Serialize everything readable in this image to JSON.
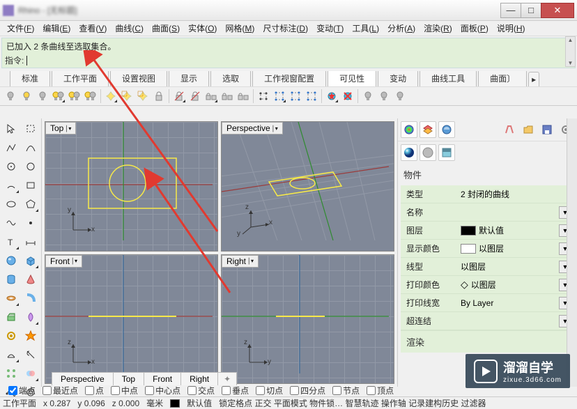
{
  "window": {
    "title": "Rhino - [无标题]"
  },
  "menus": [
    {
      "label": "文件",
      "key": "F"
    },
    {
      "label": "编辑",
      "key": "E"
    },
    {
      "label": "查看",
      "key": "V"
    },
    {
      "label": "曲线",
      "key": "C"
    },
    {
      "label": "曲面",
      "key": "S"
    },
    {
      "label": "实体",
      "key": "O"
    },
    {
      "label": "网格",
      "key": "M"
    },
    {
      "label": "尺寸标注",
      "key": "D"
    },
    {
      "label": "变动",
      "key": "T"
    },
    {
      "label": "工具",
      "key": "L"
    },
    {
      "label": "分析",
      "key": "A"
    },
    {
      "label": "渲染",
      "key": "R"
    },
    {
      "label": "面板",
      "key": "P"
    },
    {
      "label": "说明",
      "key": "H"
    }
  ],
  "command": {
    "history_line": "已加入 2 条曲线至选取集合。",
    "prompt_label": "指令:",
    "input_value": ""
  },
  "tabs": [
    {
      "label": "标准"
    },
    {
      "label": "工作平面"
    },
    {
      "label": "设置视图"
    },
    {
      "label": "显示"
    },
    {
      "label": "选取"
    },
    {
      "label": "工作视窗配置"
    },
    {
      "label": "可见性",
      "active": true
    },
    {
      "label": "变动"
    },
    {
      "label": "曲线工具"
    },
    {
      "label": "曲面〕"
    }
  ],
  "toolbar_icons": [
    {
      "name": "bulb-off-1",
      "type": "bulb_off"
    },
    {
      "name": "bulb-on-1",
      "type": "bulb_on"
    },
    {
      "name": "bulb-off-2",
      "type": "bulb_off"
    },
    {
      "name": "bulb-pair-1",
      "type": "bulb_pair",
      "corner": true
    },
    {
      "name": "bulb-pair-2",
      "type": "bulb_pair"
    },
    {
      "name": "bulb-pair-3",
      "type": "bulb_pair"
    },
    {
      "name": "sep"
    },
    {
      "name": "light-1",
      "type": "light",
      "corner": true
    },
    {
      "name": "light-2",
      "type": "light2"
    },
    {
      "name": "light-3",
      "type": "light2"
    },
    {
      "name": "lock-1",
      "type": "lock"
    },
    {
      "name": "sep"
    },
    {
      "name": "unlock-1",
      "type": "unlock",
      "corner": true
    },
    {
      "name": "unlock-2",
      "type": "unlock"
    },
    {
      "name": "lock-pair-1",
      "type": "lock_pair",
      "corner": true
    },
    {
      "name": "lock-pair-2",
      "type": "lock_pair"
    },
    {
      "name": "lock-pair-3",
      "type": "lock_pair"
    },
    {
      "name": "sep"
    },
    {
      "name": "points-on",
      "type": "dots"
    },
    {
      "name": "points-ctrl-1",
      "type": "dots2",
      "corner": true
    },
    {
      "name": "points-ctrl-2",
      "type": "dots2"
    },
    {
      "name": "points-ctrl-3",
      "type": "dots2"
    },
    {
      "name": "sep"
    },
    {
      "name": "red-star",
      "type": "redstar",
      "corner": true
    },
    {
      "name": "red-x",
      "type": "redx"
    },
    {
      "name": "sep"
    },
    {
      "name": "bulb-off-3",
      "type": "bulb_off"
    },
    {
      "name": "bulb-off-4",
      "type": "bulb_off"
    },
    {
      "name": "bulb-off-5",
      "type": "bulb_off"
    }
  ],
  "left_tools": [
    "arrow",
    "lasso",
    "polyline",
    "curve",
    "circle-center",
    "circle-3pt",
    "arc",
    "rect",
    "ellipse",
    "polygon",
    "free-curve",
    "point",
    "text",
    "dim",
    "sphere",
    "box",
    "cylinder",
    "cone",
    "torus",
    "pipe",
    "extrude",
    "revolve",
    "gear",
    "burst",
    "loft",
    "trim",
    "array",
    "boolean",
    "curve2",
    "offset"
  ],
  "viewports": {
    "top": "Top",
    "perspective": "Perspective",
    "front": "Front",
    "right": "Right"
  },
  "viewport_tabs": [
    "Perspective",
    "Top",
    "Front",
    "Right"
  ],
  "properties_panel": {
    "title": "物件",
    "rows": {
      "type": {
        "label": "类型",
        "value": "2 封闭的曲线"
      },
      "name": {
        "label": "名称",
        "value": ""
      },
      "layer": {
        "label": "图层",
        "value": "默认值",
        "swatch": "#000000"
      },
      "display_color": {
        "label": "显示颜色",
        "value": "以图层",
        "swatch": "#ffffff"
      },
      "linetype": {
        "label": "线型",
        "value": "以图层"
      },
      "print_color": {
        "label": "打印颜色",
        "value": "以图层",
        "diamond": true
      },
      "print_width": {
        "label": "打印线宽",
        "value": "By Layer"
      },
      "hyperlink": {
        "label": "超连结",
        "value": ""
      }
    },
    "render_section": "渲染"
  },
  "osnap": [
    {
      "label": "端点",
      "checked": true
    },
    {
      "label": "最近点",
      "checked": false
    },
    {
      "label": "点",
      "checked": false
    },
    {
      "label": "中点",
      "checked": false
    },
    {
      "label": "中心点",
      "checked": false
    },
    {
      "label": "交点",
      "checked": false
    },
    {
      "label": "垂点",
      "checked": false
    },
    {
      "label": "切点",
      "checked": false
    },
    {
      "label": "四分点",
      "checked": false
    },
    {
      "label": "节点",
      "checked": false
    },
    {
      "label": "顶点",
      "checked": false
    }
  ],
  "statusbar": {
    "cplane": "工作平面",
    "x": "x 0.287",
    "y": "y 0.096",
    "z": "z 0.000",
    "unit": "毫米",
    "layer_swatch": "#000000",
    "layer": "默认值",
    "rest": "锁定格点 正交 平面模式 物件锁… 智慧轨迹 操作轴 记录建构历史 过滤器"
  },
  "watermark": {
    "brand": "溜溜自学",
    "url": "zixue.3d66.com"
  },
  "colors": {
    "viewport_bg": "#808898",
    "grid_line": "#9299a7",
    "x_axis": "#9a3b3b",
    "y_axis": "#2e8b2e",
    "z_axis": "#3b6b9a",
    "selection": "#f7e948",
    "prop_green": "#e2f0d9",
    "arrow": "#e13a30"
  }
}
